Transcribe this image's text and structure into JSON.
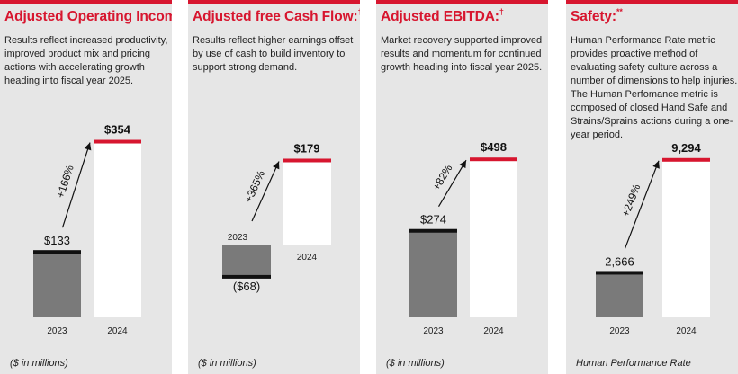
{
  "colors": {
    "accent": "#d7162f",
    "panel_bg": "#e6e6e6",
    "bar_2023": "#7a7a7a",
    "bar_2024": "#ffffff",
    "text": "#222222"
  },
  "panels": [
    {
      "title": "Adjusted Operating Income:",
      "title_sup": "*†",
      "description": "Results reflect increased productivity, improved product mix and pricing actions with accelerating growth heading into fiscal year 2025.",
      "unit_label": "($ in millions)"
    },
    {
      "title": "Adjusted free Cash Flow:",
      "title_sup": "†",
      "description": "Results reflect higher earnings offset by use of cash to build inventory to support strong demand.",
      "unit_label": "($ in millions)"
    },
    {
      "title": "Adjusted EBITDA:",
      "title_sup": "†",
      "description": "Market recovery supported improved results and momentum for continued growth heading into fiscal year 2025.",
      "unit_label": "($ in millions)"
    },
    {
      "title": "Safety:",
      "title_sup": "**",
      "description": "Human Performance Rate metric provides proactive method of evaluating safety culture across a number of dimensions to help injuries. The Human Perfomance metric is composed of closed Hand Safe and Strains/Sprains actions during a one-year period.",
      "unit_label": "Human Performance Rate"
    }
  ],
  "chart_data": [
    {
      "type": "bar",
      "title": "Adjusted Operating Income",
      "categories": [
        "2023",
        "2024"
      ],
      "values": [
        133,
        354
      ],
      "value_labels": [
        "$133",
        "$354"
      ],
      "change_label": "+166%",
      "unit": "$ in millions",
      "ylim": [
        0,
        420
      ]
    },
    {
      "type": "bar",
      "title": "Adjusted free Cash Flow",
      "categories": [
        "2023",
        "2024"
      ],
      "values": [
        -68,
        179
      ],
      "value_labels": [
        "($68)",
        "$179"
      ],
      "change_label": "+365%",
      "unit": "$ in millions",
      "ylim": [
        -100,
        260
      ]
    },
    {
      "type": "bar",
      "title": "Adjusted EBITDA",
      "categories": [
        "2023",
        "2024"
      ],
      "values": [
        274,
        498
      ],
      "value_labels": [
        "$274",
        "$498"
      ],
      "change_label": "+82%",
      "unit": "$ in millions",
      "ylim": [
        0,
        560
      ]
    },
    {
      "type": "bar",
      "title": "Safety",
      "categories": [
        "2023",
        "2024"
      ],
      "values": [
        2666,
        9294
      ],
      "value_labels": [
        "2,666",
        "9,294"
      ],
      "change_label": "+249%",
      "unit": "Human Performance Rate",
      "ylim": [
        0,
        10350
      ]
    }
  ]
}
